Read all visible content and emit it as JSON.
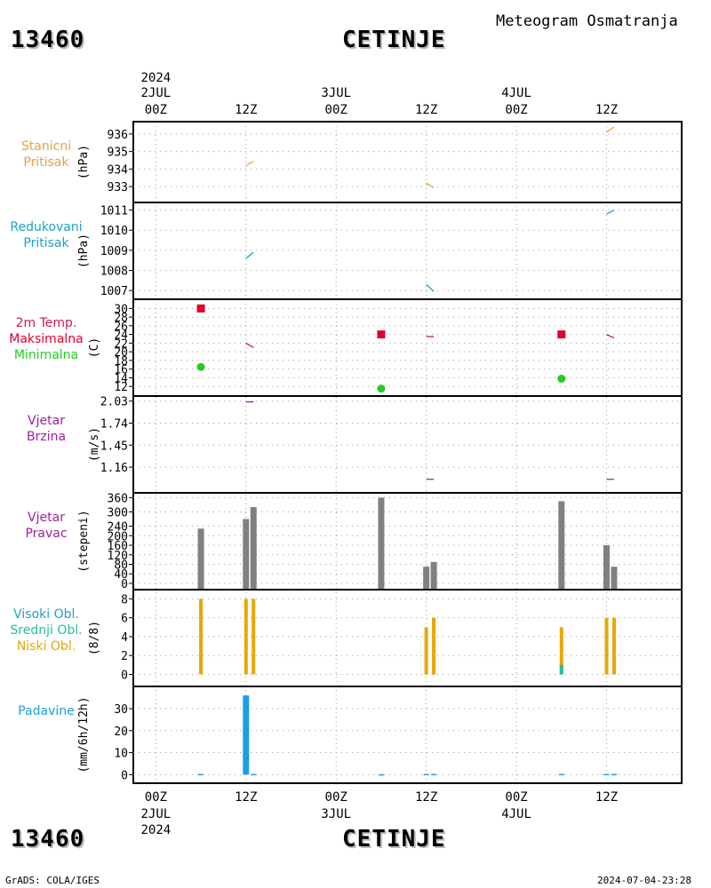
{
  "header": {
    "station_id": "13460",
    "station_name": "CETINJE",
    "subtitle": "Meteogram Osmatranja"
  },
  "footer": {
    "station_id": "13460",
    "station_name": "CETINJE",
    "credit": "GrADS: COLA/IGES",
    "timestamp": "2024-07-04-23:28"
  },
  "colors": {
    "pressure": "#e6a23c",
    "reduced_pressure": "#1ea0c8",
    "temp_max": "#e0002a",
    "temp_min": "#22cc22",
    "temp_line": "#c8185a",
    "wind": "#a020a0",
    "bars_gray": "#808080",
    "low_cloud": "#e6a800",
    "mid_cloud": "#20c0a0",
    "high_cloud": "#1ea0c8",
    "precip": "#1e9ee0",
    "grid": "#9a9a9a"
  },
  "chart_data": {
    "type": "meteogram",
    "x_axis": {
      "top_year": "2024",
      "ticks": [
        {
          "hour": 0,
          "time": "00Z",
          "date": "2JUL"
        },
        {
          "hour": 12,
          "time": "12Z",
          "date": ""
        },
        {
          "hour": 24,
          "time": "00Z",
          "date": "3JUL"
        },
        {
          "hour": 36,
          "time": "12Z",
          "date": ""
        },
        {
          "hour": 48,
          "time": "00Z",
          "date": "4JUL"
        },
        {
          "hour": 60,
          "time": "12Z",
          "date": ""
        }
      ],
      "range_hours": [
        -3,
        70
      ]
    },
    "panels": [
      {
        "id": "station-pressure",
        "labels": [
          "Stanicni",
          "Pritisak"
        ],
        "label_colors": [
          "pressure",
          "pressure"
        ],
        "unit": "(hPa)",
        "ylim": [
          932.4,
          936.5
        ],
        "yticks": [
          933,
          934,
          935,
          936
        ],
        "segments": [
          {
            "x1": 12,
            "y1": 934.2,
            "x2": 13,
            "y2": 934.45,
            "color": "pressure"
          },
          {
            "x1": 36,
            "y1": 933.2,
            "x2": 37,
            "y2": 932.95,
            "color": "pressure"
          },
          {
            "x1": 60,
            "y1": 936.1,
            "x2": 61,
            "y2": 936.4,
            "color": "pressure"
          }
        ]
      },
      {
        "id": "reduced-pressure",
        "labels": [
          "Redukovani",
          "Pritisak"
        ],
        "label_colors": [
          "reduced_pressure",
          "reduced_pressure"
        ],
        "unit": "(hPa)",
        "ylim": [
          1006.7,
          1011.2
        ],
        "yticks": [
          1007,
          1008,
          1009,
          1010,
          1011
        ],
        "segments": [
          {
            "x1": 12,
            "y1": 1008.6,
            "x2": 13,
            "y2": 1008.9,
            "color": "reduced_pressure"
          },
          {
            "x1": 36,
            "y1": 1007.3,
            "x2": 37,
            "y2": 1006.95,
            "color": "reduced_pressure"
          },
          {
            "x1": 60,
            "y1": 1010.8,
            "x2": 61,
            "y2": 1011.0,
            "color": "reduced_pressure"
          }
        ]
      },
      {
        "id": "temperature",
        "labels": [
          "2m Temp.",
          "Maksimalna",
          "Minimalna"
        ],
        "label_colors": [
          "temp_line",
          "temp_max",
          "temp_min"
        ],
        "unit": "(C)",
        "ylim": [
          10.4,
          31.3
        ],
        "yticks": [
          12,
          14,
          16,
          18,
          20,
          22,
          24,
          26,
          28,
          30
        ],
        "segments": [
          {
            "x1": 12,
            "y1": 22,
            "x2": 13,
            "y2": 21,
            "color": "temp_line"
          },
          {
            "x1": 36,
            "y1": 23.5,
            "x2": 37,
            "y2": 23.5,
            "color": "temp_line"
          },
          {
            "x1": 60,
            "y1": 24,
            "x2": 61,
            "y2": 23.2,
            "color": "temp_line"
          }
        ],
        "max_points": [
          {
            "x": 6,
            "y": 30
          },
          {
            "x": 30,
            "y": 24
          },
          {
            "x": 54,
            "y": 24
          }
        ],
        "min_points": [
          {
            "x": 6,
            "y": 16.5
          },
          {
            "x": 30,
            "y": 11.5
          },
          {
            "x": 54,
            "y": 13.8
          }
        ]
      },
      {
        "id": "wind-speed",
        "labels": [
          "Vjetar",
          "Brzina"
        ],
        "label_colors": [
          "wind",
          "wind"
        ],
        "unit": "(m/s)",
        "ylim": [
          0.88,
          2.05
        ],
        "yticks": [
          1.16,
          1.45,
          1.74,
          2.03
        ],
        "yticks_labels": [
          "1.16",
          "1.45",
          "1.74",
          "2.03"
        ],
        "segments": [
          {
            "x1": 12,
            "y1": 2.02,
            "x2": 13,
            "y2": 2.02,
            "color": "wind"
          },
          {
            "x1": 36,
            "y1": 1.0,
            "x2": 37,
            "y2": 1.0,
            "color": "wind"
          },
          {
            "x1": 60,
            "y1": 1.0,
            "x2": 61,
            "y2": 1.0,
            "color": "wind"
          }
        ]
      },
      {
        "id": "wind-direction",
        "labels": [
          "Vjetar",
          "Pravac"
        ],
        "label_colors": [
          "wind",
          "wind"
        ],
        "unit": "(stepeni)",
        "ylim": [
          -15,
          365
        ],
        "yticks": [
          0,
          40,
          80,
          120,
          160,
          200,
          240,
          300,
          360
        ],
        "bars": [
          {
            "x": 6,
            "value": 230
          },
          {
            "x": 12,
            "value": 270
          },
          {
            "x": 13,
            "value": 320
          },
          {
            "x": 30,
            "value": 360
          },
          {
            "x": 36,
            "value": 70
          },
          {
            "x": 37,
            "value": 90
          },
          {
            "x": 54,
            "value": 345
          },
          {
            "x": 60,
            "value": 160
          },
          {
            "x": 61,
            "value": 70
          }
        ]
      },
      {
        "id": "cloud-cover",
        "labels": [
          "Visoki Obl.",
          "Srednji Obl.",
          "Niski Obl."
        ],
        "label_colors": [
          "high_cloud",
          "mid_cloud",
          "low_cloud"
        ],
        "unit": "(8/8)",
        "ylim": [
          -0.8,
          8.6
        ],
        "yticks": [
          0,
          2,
          4,
          6,
          8
        ],
        "low_bars": [
          {
            "x": 6,
            "value": 8
          },
          {
            "x": 12,
            "value": 8
          },
          {
            "x": 13,
            "value": 8
          },
          {
            "x": 36,
            "value": 5
          },
          {
            "x": 37,
            "value": 6
          },
          {
            "x": 54,
            "value": 5
          },
          {
            "x": 60,
            "value": 6
          },
          {
            "x": 61,
            "value": 6
          }
        ],
        "mid_bars": [
          {
            "x": 54,
            "value": 1
          }
        ]
      },
      {
        "id": "precipitation",
        "labels": [
          "Padavine"
        ],
        "label_colors": [
          "precip"
        ],
        "unit": "(mm/6h/12h)",
        "ylim": [
          -2.7,
          38.5
        ],
        "yticks": [
          0,
          10,
          20,
          30
        ],
        "bars": [
          {
            "x": 6,
            "value": 0.3
          },
          {
            "x": 12,
            "value": 36
          },
          {
            "x": 13,
            "value": 0.3
          },
          {
            "x": 30,
            "value": 0.2
          },
          {
            "x": 36,
            "value": 0.3
          },
          {
            "x": 37,
            "value": 0.3
          },
          {
            "x": 54,
            "value": 0.3
          },
          {
            "x": 60,
            "value": 0.3
          },
          {
            "x": 61,
            "value": 0.3
          }
        ]
      }
    ]
  }
}
